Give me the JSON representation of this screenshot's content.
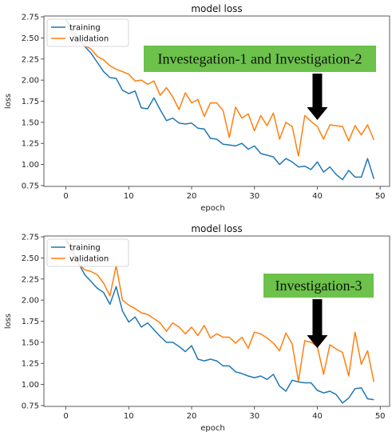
{
  "chart_data": [
    {
      "type": "line",
      "title": "model loss",
      "xlabel": "epoch",
      "ylabel": "loss",
      "xlim": [
        -3.5,
        51.5
      ],
      "ylim": [
        0.74,
        2.76
      ],
      "xticks": [
        "0",
        "10",
        "20",
        "30",
        "40",
        "50"
      ],
      "xtick_values": [
        0,
        10,
        20,
        30,
        40,
        50
      ],
      "yticks": [
        "0.75",
        "1.00",
        "1.25",
        "1.50",
        "1.75",
        "2.00",
        "2.25",
        "2.50",
        "2.75"
      ],
      "ytick_values": [
        0.75,
        1.0,
        1.25,
        1.5,
        1.75,
        2.0,
        2.25,
        2.5,
        2.75
      ],
      "legend_position": "top-left",
      "grid": false,
      "x": [
        0,
        1,
        2,
        3,
        4,
        5,
        6,
        7,
        8,
        9,
        10,
        11,
        12,
        13,
        14,
        15,
        16,
        17,
        18,
        19,
        20,
        21,
        22,
        23,
        24,
        25,
        26,
        27,
        28,
        29,
        30,
        31,
        32,
        33,
        34,
        35,
        36,
        37,
        38,
        39,
        40,
        41,
        42,
        43,
        44,
        45,
        46,
        47,
        48,
        49
      ],
      "series": [
        {
          "name": "training",
          "color": "#1f77b4",
          "values": [
            2.72,
            2.6,
            2.49,
            2.4,
            2.32,
            2.21,
            2.1,
            2.03,
            2.02,
            1.88,
            1.84,
            1.87,
            1.67,
            1.66,
            1.79,
            1.65,
            1.52,
            1.55,
            1.49,
            1.48,
            1.49,
            1.43,
            1.42,
            1.31,
            1.3,
            1.24,
            1.23,
            1.22,
            1.25,
            1.18,
            1.22,
            1.13,
            1.11,
            1.09,
            1.0,
            1.07,
            1.03,
            0.97,
            0.98,
            0.94,
            1.03,
            0.91,
            0.97,
            0.88,
            0.82,
            0.93,
            0.85,
            0.85,
            1.07,
            0.83
          ]
        },
        {
          "name": "validation",
          "color": "#ff7f0e",
          "values": [
            2.66,
            2.55,
            2.47,
            2.41,
            2.37,
            2.28,
            2.24,
            2.17,
            2.13,
            2.1,
            2.07,
            1.99,
            2.0,
            1.95,
            1.99,
            1.82,
            1.91,
            1.8,
            1.65,
            1.85,
            1.73,
            1.77,
            1.57,
            1.73,
            1.73,
            1.64,
            1.32,
            1.68,
            1.55,
            1.6,
            1.4,
            1.58,
            1.46,
            1.61,
            1.3,
            1.5,
            1.45,
            1.1,
            1.58,
            1.51,
            1.45,
            1.3,
            1.47,
            1.46,
            1.45,
            1.28,
            1.46,
            1.35,
            1.47,
            1.29
          ]
        }
      ],
      "annotation": {
        "text": "Investegation-1 and Investigation-2",
        "background": "#6cc24a",
        "arrow_x": 40
      }
    },
    {
      "type": "line",
      "title": "model loss",
      "xlabel": "epoch",
      "ylabel": "loss",
      "xlim": [
        -3.5,
        51.5
      ],
      "ylim": [
        0.74,
        2.76
      ],
      "xticks": [
        "0",
        "10",
        "20",
        "30",
        "40",
        "50"
      ],
      "xtick_values": [
        0,
        10,
        20,
        30,
        40,
        50
      ],
      "yticks": [
        "0.75",
        "1.00",
        "1.25",
        "1.50",
        "1.75",
        "2.00",
        "2.25",
        "2.50",
        "2.75"
      ],
      "ytick_values": [
        0.75,
        1.0,
        1.25,
        1.5,
        1.75,
        2.0,
        2.25,
        2.5,
        2.75
      ],
      "legend_position": "top-left",
      "grid": false,
      "x": [
        0,
        1,
        2,
        3,
        4,
        5,
        6,
        7,
        8,
        9,
        10,
        11,
        12,
        13,
        14,
        15,
        16,
        17,
        18,
        19,
        20,
        21,
        22,
        23,
        24,
        25,
        26,
        27,
        28,
        29,
        30,
        31,
        32,
        33,
        34,
        35,
        36,
        37,
        38,
        39,
        40,
        41,
        42,
        43,
        44,
        45,
        46,
        47,
        48,
        49
      ],
      "series": [
        {
          "name": "training",
          "color": "#1f77b4",
          "values": [
            2.72,
            2.6,
            2.44,
            2.3,
            2.22,
            2.14,
            2.09,
            1.95,
            2.16,
            1.87,
            1.74,
            1.8,
            1.68,
            1.73,
            1.65,
            1.57,
            1.5,
            1.5,
            1.45,
            1.39,
            1.46,
            1.3,
            1.28,
            1.3,
            1.28,
            1.22,
            1.22,
            1.15,
            1.13,
            1.1,
            1.08,
            1.1,
            1.06,
            1.12,
            0.98,
            0.92,
            1.05,
            1.03,
            1.02,
            1.02,
            0.93,
            0.9,
            0.92,
            0.88,
            0.78,
            0.84,
            0.95,
            0.96,
            0.83,
            0.82
          ]
        },
        {
          "name": "validation",
          "color": "#ff7f0e",
          "values": [
            2.7,
            2.55,
            2.43,
            2.36,
            2.34,
            2.3,
            2.2,
            2.05,
            2.41,
            2.0,
            1.94,
            1.9,
            1.85,
            1.83,
            1.78,
            1.73,
            1.63,
            1.73,
            1.68,
            1.6,
            1.68,
            1.58,
            1.7,
            1.55,
            1.6,
            1.56,
            1.56,
            1.49,
            1.56,
            1.43,
            1.62,
            1.6,
            1.55,
            1.49,
            1.4,
            1.61,
            1.48,
            1.04,
            1.52,
            1.5,
            1.45,
            1.12,
            1.47,
            1.42,
            1.38,
            1.1,
            1.62,
            1.24,
            1.4,
            1.03
          ]
        }
      ],
      "annotation": {
        "text": "Investigation-3",
        "background": "#6cc24a",
        "arrow_x": 40
      }
    }
  ]
}
